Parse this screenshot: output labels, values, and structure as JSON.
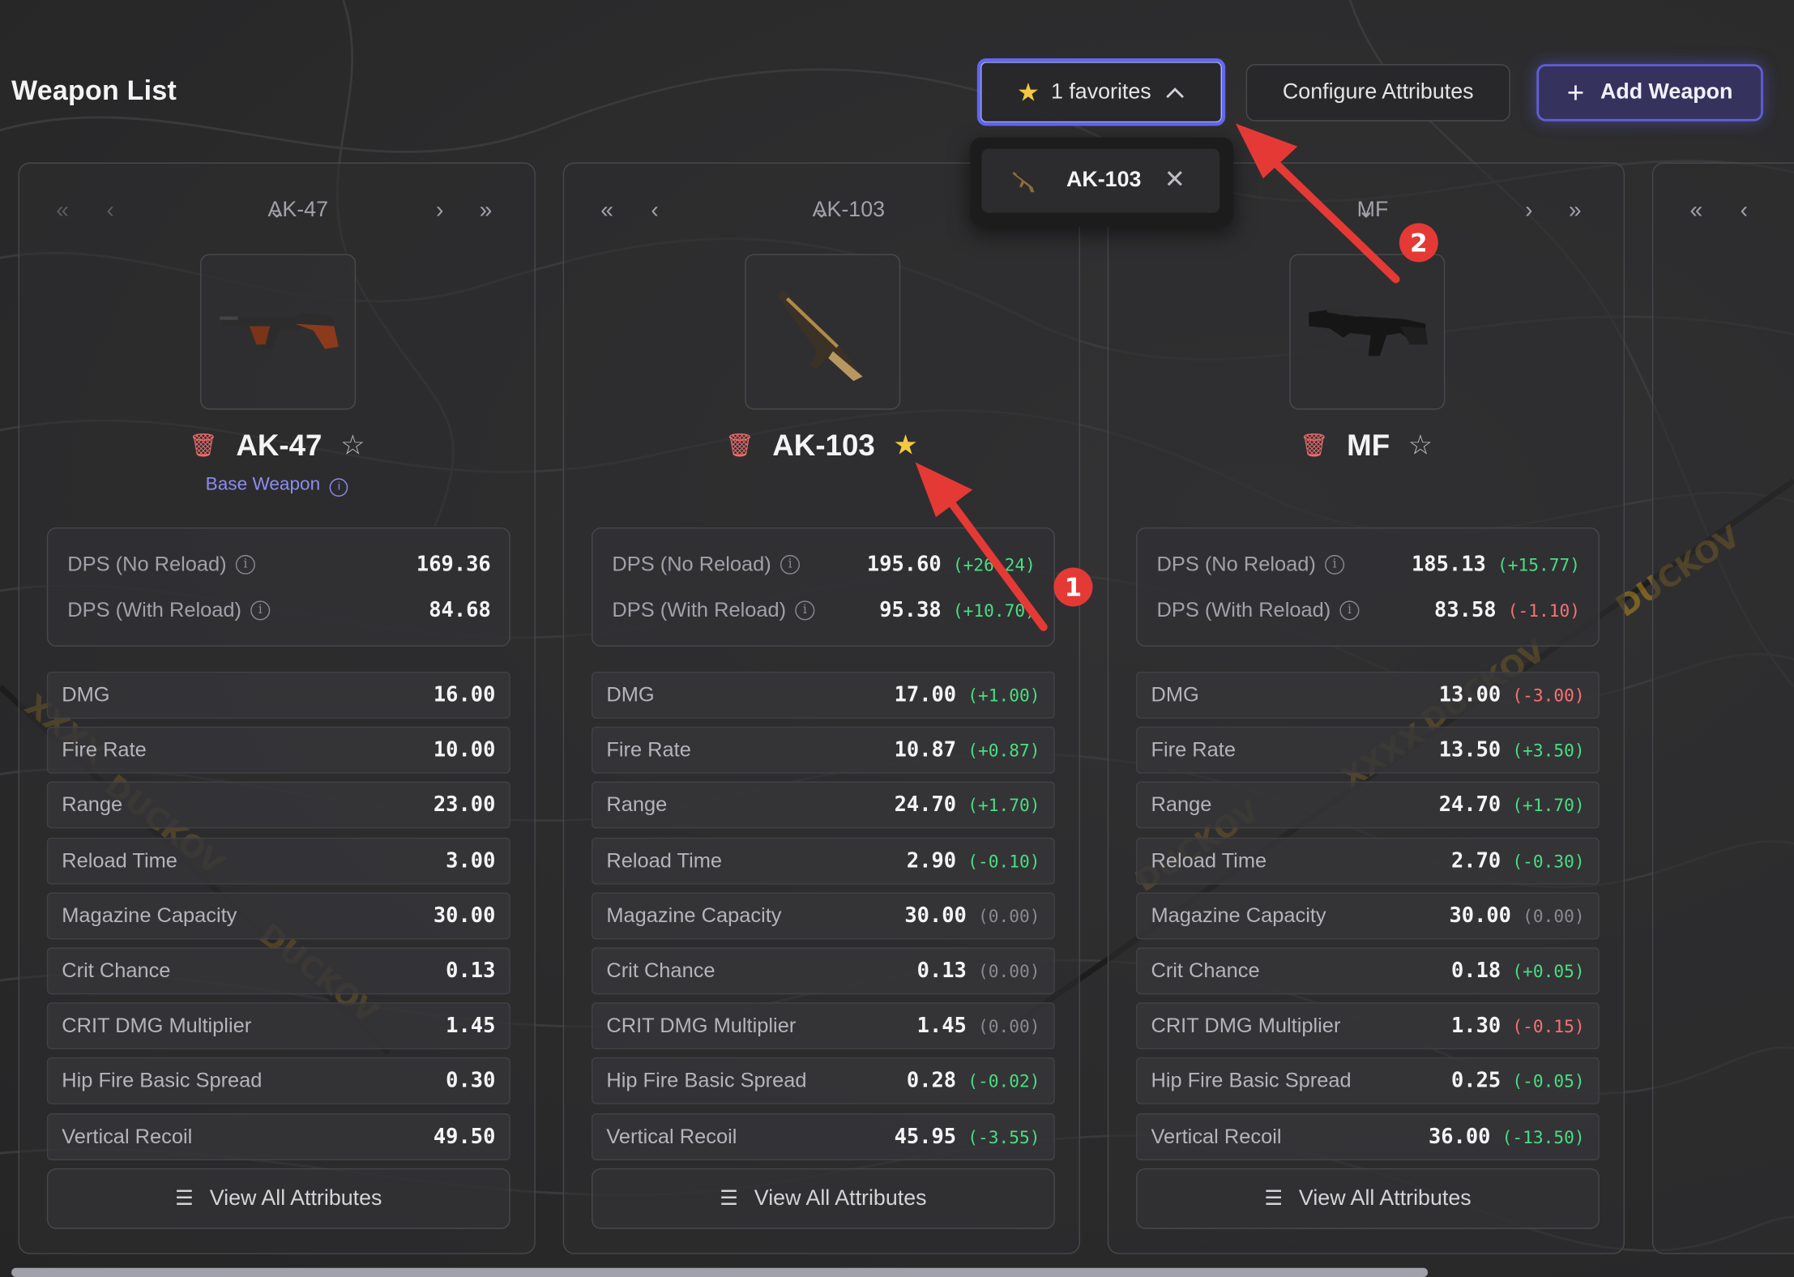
{
  "header": {
    "title": "Weapon List",
    "favorites_label": "1 favorites",
    "configure_label": "Configure Attributes",
    "add_label": "Add Weapon"
  },
  "favorites_dropdown": {
    "items": [
      {
        "name": "AK-103"
      }
    ]
  },
  "weapons": [
    {
      "nav": "AK-47",
      "name": "AK-47",
      "favorite": false,
      "base_tag": "Base Weapon",
      "dps": [
        {
          "label": "DPS (No Reload)",
          "value": "169.36",
          "delta": "",
          "sign": ""
        },
        {
          "label": "DPS (With Reload)",
          "value": "84.68",
          "delta": "",
          "sign": ""
        }
      ],
      "stats": [
        {
          "label": "DMG",
          "value": "16.00",
          "delta": "",
          "sign": ""
        },
        {
          "label": "Fire Rate",
          "value": "10.00",
          "delta": "",
          "sign": ""
        },
        {
          "label": "Range",
          "value": "23.00",
          "delta": "",
          "sign": ""
        },
        {
          "label": "Reload Time",
          "value": "3.00",
          "delta": "",
          "sign": ""
        },
        {
          "label": "Magazine Capacity",
          "value": "30.00",
          "delta": "",
          "sign": ""
        },
        {
          "label": "Crit Chance",
          "value": "0.13",
          "delta": "",
          "sign": ""
        },
        {
          "label": "CRIT DMG Multiplier",
          "value": "1.45",
          "delta": "",
          "sign": ""
        },
        {
          "label": "Hip Fire Basic Spread",
          "value": "0.30",
          "delta": "",
          "sign": ""
        },
        {
          "label": "Vertical Recoil",
          "value": "49.50",
          "delta": "",
          "sign": ""
        }
      ],
      "view_all": "View All Attributes"
    },
    {
      "nav": "AK-103",
      "name": "AK-103",
      "favorite": true,
      "base_tag": "",
      "dps": [
        {
          "label": "DPS (No Reload)",
          "value": "195.60",
          "delta": "(+26.24)",
          "sign": "pos"
        },
        {
          "label": "DPS (With Reload)",
          "value": "95.38",
          "delta": "(+10.70)",
          "sign": "pos"
        }
      ],
      "stats": [
        {
          "label": "DMG",
          "value": "17.00",
          "delta": "(+1.00)",
          "sign": "pos"
        },
        {
          "label": "Fire Rate",
          "value": "10.87",
          "delta": "(+0.87)",
          "sign": "pos"
        },
        {
          "label": "Range",
          "value": "24.70",
          "delta": "(+1.70)",
          "sign": "pos"
        },
        {
          "label": "Reload Time",
          "value": "2.90",
          "delta": "(-0.10)",
          "sign": "pos"
        },
        {
          "label": "Magazine Capacity",
          "value": "30.00",
          "delta": "(0.00)",
          "sign": "zero"
        },
        {
          "label": "Crit Chance",
          "value": "0.13",
          "delta": "(0.00)",
          "sign": "zero"
        },
        {
          "label": "CRIT DMG Multiplier",
          "value": "1.45",
          "delta": "(0.00)",
          "sign": "zero"
        },
        {
          "label": "Hip Fire Basic Spread",
          "value": "0.28",
          "delta": "(-0.02)",
          "sign": "pos"
        },
        {
          "label": "Vertical Recoil",
          "value": "45.95",
          "delta": "(-3.55)",
          "sign": "pos"
        }
      ],
      "view_all": "View All Attributes"
    },
    {
      "nav": "MF",
      "name": "MF",
      "favorite": false,
      "base_tag": "",
      "dps": [
        {
          "label": "DPS (No Reload)",
          "value": "185.13",
          "delta": "(+15.77)",
          "sign": "pos"
        },
        {
          "label": "DPS (With Reload)",
          "value": "83.58",
          "delta": "(-1.10)",
          "sign": "neg"
        }
      ],
      "stats": [
        {
          "label": "DMG",
          "value": "13.00",
          "delta": "(-3.00)",
          "sign": "neg"
        },
        {
          "label": "Fire Rate",
          "value": "13.50",
          "delta": "(+3.50)",
          "sign": "pos"
        },
        {
          "label": "Range",
          "value": "24.70",
          "delta": "(+1.70)",
          "sign": "pos"
        },
        {
          "label": "Reload Time",
          "value": "2.70",
          "delta": "(-0.30)",
          "sign": "pos"
        },
        {
          "label": "Magazine Capacity",
          "value": "30.00",
          "delta": "(0.00)",
          "sign": "zero"
        },
        {
          "label": "Crit Chance",
          "value": "0.18",
          "delta": "(+0.05)",
          "sign": "pos"
        },
        {
          "label": "CRIT DMG Multiplier",
          "value": "1.30",
          "delta": "(-0.15)",
          "sign": "neg"
        },
        {
          "label": "Hip Fire Basic Spread",
          "value": "0.25",
          "delta": "(-0.05)",
          "sign": "pos"
        },
        {
          "label": "Vertical Recoil",
          "value": "36.00",
          "delta": "(-13.50)",
          "sign": "pos"
        }
      ],
      "view_all": "View All Attributes"
    }
  ],
  "watermark": {
    "text": "DUCKOV",
    "prefix": "XXXX"
  },
  "annotations": [
    {
      "label": "1"
    },
    {
      "label": "2"
    }
  ],
  "colors": {
    "accent": "#6366f1",
    "favorite_star": "#f5c842",
    "positive": "#4ade80",
    "negative": "#f87171",
    "arrow": "#e53935"
  }
}
